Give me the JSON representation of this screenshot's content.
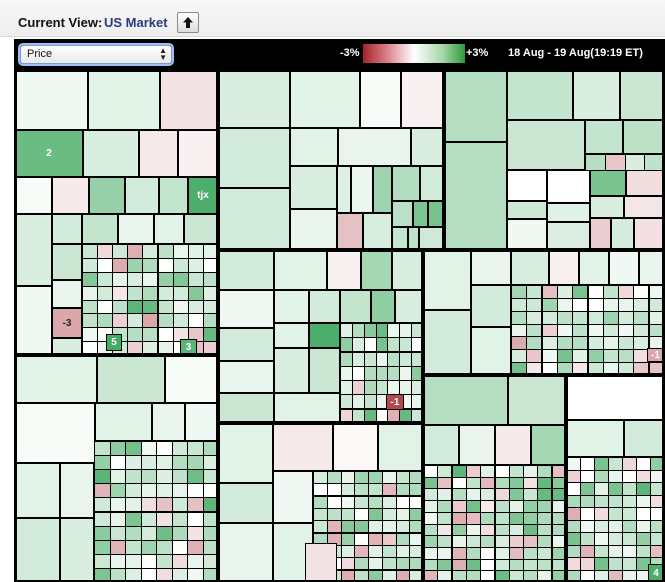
{
  "header": {
    "current_view_label": "Current View:",
    "current_view_value": "US Market",
    "up_button_icon": "up-arrow-icon"
  },
  "toolbar": {
    "select_value": "Price",
    "legend_min": "-3%",
    "legend_max": "+3%",
    "date_range": "18 Aug - 19 Aug(19:19 ET)"
  },
  "colors": {
    "strong_green": "#1f9a45",
    "light_green": "#cfe8d3",
    "pale_green": "#eef7ef",
    "pale_pink": "#f7e8ea",
    "pink": "#e3b4bb",
    "red": "#b04a55",
    "white": "#ffffff"
  },
  "tiles": [
    {
      "label": "2",
      "pct": 2
    },
    {
      "label": "tjx",
      "pct": 2.4
    },
    {
      "label": "-3",
      "pct": -1.2
    },
    {
      "label": "5",
      "pct": 2.5
    },
    {
      "label": "3",
      "pct": 2.2
    },
    {
      "label": "-1",
      "pct": -2.5
    },
    {
      "label": "-2",
      "pct": -1.6
    },
    {
      "label": "-1",
      "pct": -1.2
    },
    {
      "label": "4",
      "pct": 2.4
    }
  ]
}
